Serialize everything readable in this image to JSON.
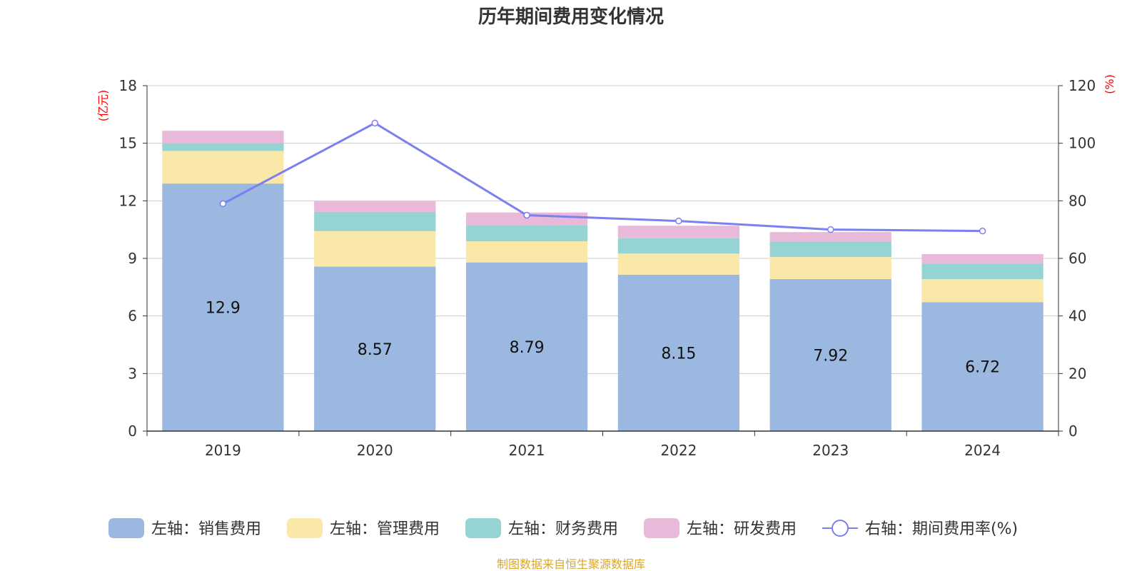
{
  "chart_data": {
    "type": "bar",
    "title": "历年期间费用变化情况",
    "categories": [
      "2019",
      "2020",
      "2021",
      "2022",
      "2023",
      "2024"
    ],
    "left_axis": {
      "unit": "(亿元)",
      "ylim": [
        0,
        18
      ],
      "ticks": [
        "0",
        "3",
        "6",
        "9",
        "12",
        "15",
        "18"
      ]
    },
    "right_axis": {
      "unit": "(%)",
      "ylim": [
        0,
        120
      ],
      "ticks": [
        "0",
        "20",
        "40",
        "60",
        "80",
        "100",
        "120"
      ]
    },
    "series": [
      {
        "name": "左轴：销售费用",
        "axis": "left",
        "type": "bar",
        "color": "#9bb8e1",
        "values": [
          12.9,
          8.57,
          8.79,
          8.15,
          7.92,
          6.72
        ],
        "labels": [
          "12.9",
          "8.57",
          "8.79",
          "8.15",
          "7.92",
          "6.72"
        ]
      },
      {
        "name": "左轴：管理费用",
        "axis": "left",
        "type": "bar",
        "color": "#f9e8a8",
        "values": [
          1.7,
          1.85,
          1.1,
          1.1,
          1.15,
          1.2
        ]
      },
      {
        "name": "左轴：财务费用",
        "axis": "left",
        "type": "bar",
        "color": "#96d4d4",
        "values": [
          0.4,
          1.0,
          0.85,
          0.8,
          0.8,
          0.8
        ]
      },
      {
        "name": "左轴：研发费用",
        "axis": "left",
        "type": "bar",
        "color": "#e8b9d8",
        "values": [
          0.65,
          0.55,
          0.65,
          0.65,
          0.5,
          0.5
        ]
      },
      {
        "name": "右轴：期间费用率(%)",
        "axis": "right",
        "type": "line",
        "color": "#7b7ff0",
        "values": [
          79,
          107,
          75,
          73,
          70,
          69.5
        ]
      }
    ],
    "grid": true,
    "legend": "bottom-center"
  },
  "source": "制图数据来自恒生聚源数据库"
}
